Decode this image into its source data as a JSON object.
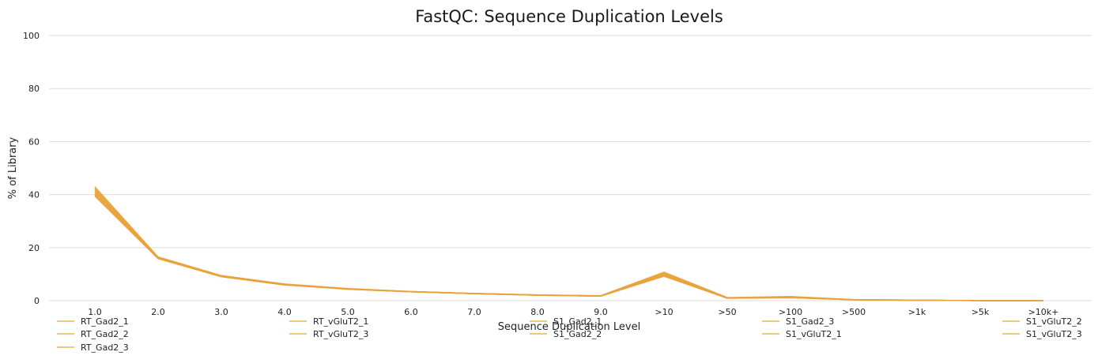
{
  "chart_data": {
    "type": "line",
    "title": "FastQC: Sequence Duplication Levels",
    "xlabel": "Sequence Duplication Level",
    "ylabel": "% of Library",
    "ylim": [
      0,
      100
    ],
    "yticks": [
      0,
      20,
      40,
      60,
      80,
      100
    ],
    "categories": [
      "1.0",
      "2.0",
      "3.0",
      "4.0",
      "5.0",
      "6.0",
      "7.0",
      "8.0",
      "9.0",
      ">10",
      ">50",
      ">100",
      ">500",
      ">1k",
      ">5k",
      ">10k+"
    ],
    "grid": true,
    "legend_position": "bottom",
    "series_color": "#E8A33C",
    "series": [
      {
        "name": "RT_Gad2_1",
        "values": [
          43.0,
          16.5,
          9.5,
          6.3,
          4.6,
          3.5,
          2.8,
          2.2,
          1.9,
          10.8,
          1.2,
          1.6,
          0.4,
          0.2,
          0.0,
          0.0
        ]
      },
      {
        "name": "RT_Gad2_2",
        "values": [
          42.2,
          16.3,
          9.3,
          6.2,
          4.5,
          3.4,
          2.7,
          2.2,
          1.8,
          10.3,
          1.1,
          1.4,
          0.4,
          0.2,
          0.0,
          0.0
        ]
      },
      {
        "name": "RT_Gad2_3",
        "values": [
          41.5,
          16.2,
          9.2,
          6.1,
          4.5,
          3.4,
          2.7,
          2.1,
          1.8,
          9.9,
          1.0,
          1.3,
          0.4,
          0.2,
          0.0,
          0.0
        ]
      },
      {
        "name": "RT_vGluT2_1",
        "values": [
          40.5,
          16.0,
          9.1,
          6.0,
          4.4,
          3.3,
          2.6,
          2.1,
          1.7,
          9.6,
          1.0,
          1.2,
          0.3,
          0.2,
          0.0,
          0.0
        ]
      },
      {
        "name": "RT_vGluT2_3",
        "values": [
          39.4,
          15.8,
          9.0,
          5.9,
          4.3,
          3.3,
          2.6,
          2.0,
          1.7,
          9.2,
          0.9,
          1.1,
          0.3,
          0.1,
          0.0,
          0.0
        ]
      },
      {
        "name": "S1_Gad2_1",
        "values": [
          42.6,
          16.4,
          9.4,
          6.2,
          4.5,
          3.4,
          2.7,
          2.2,
          1.8,
          10.5,
          1.1,
          1.5,
          0.4,
          0.2,
          0.0,
          0.0
        ]
      },
      {
        "name": "S1_Gad2_2",
        "values": [
          41.0,
          16.1,
          9.2,
          6.1,
          4.4,
          3.4,
          2.7,
          2.1,
          1.8,
          9.8,
          1.0,
          1.3,
          0.3,
          0.2,
          0.0,
          0.0
        ]
      },
      {
        "name": "S1_Gad2_3",
        "values": [
          40.0,
          15.9,
          9.1,
          6.0,
          4.4,
          3.3,
          2.6,
          2.0,
          1.7,
          9.4,
          0.9,
          1.2,
          0.3,
          0.1,
          0.0,
          0.0
        ]
      },
      {
        "name": "S1_vGluT2_1",
        "values": [
          41.8,
          16.2,
          9.3,
          6.1,
          4.5,
          3.4,
          2.7,
          2.1,
          1.8,
          10.1,
          1.0,
          1.4,
          0.4,
          0.2,
          0.0,
          0.0
        ]
      },
      {
        "name": "S1_vGluT2_2",
        "values": [
          40.8,
          16.0,
          9.1,
          6.0,
          4.4,
          3.3,
          2.6,
          2.1,
          1.7,
          9.7,
          1.0,
          1.2,
          0.3,
          0.2,
          0.0,
          0.0
        ]
      },
      {
        "name": "S1_vGluT2_3",
        "values": [
          39.8,
          15.9,
          9.0,
          5.9,
          4.3,
          3.3,
          2.6,
          2.0,
          1.7,
          9.3,
          0.9,
          1.1,
          0.3,
          0.1,
          0.0,
          0.0
        ]
      }
    ]
  }
}
